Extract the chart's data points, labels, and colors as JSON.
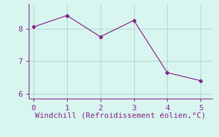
{
  "x": [
    0,
    1,
    2,
    3,
    4,
    5
  ],
  "y": [
    8.05,
    8.4,
    7.75,
    8.25,
    6.65,
    6.4
  ],
  "line_color": "#882288",
  "marker": "D",
  "marker_size": 2.5,
  "background_color": "#d8f5f0",
  "grid_color": "#b0d8cc",
  "axis_color": "#882288",
  "xlabel": "Windchill (Refroidissement éolien,°C)",
  "xlabel_fontsize": 8,
  "tick_fontsize": 8,
  "xlim": [
    -0.15,
    5.35
  ],
  "ylim": [
    5.85,
    8.75
  ],
  "yticks": [
    6,
    7,
    8
  ],
  "xticks": [
    0,
    1,
    2,
    3,
    4,
    5
  ]
}
